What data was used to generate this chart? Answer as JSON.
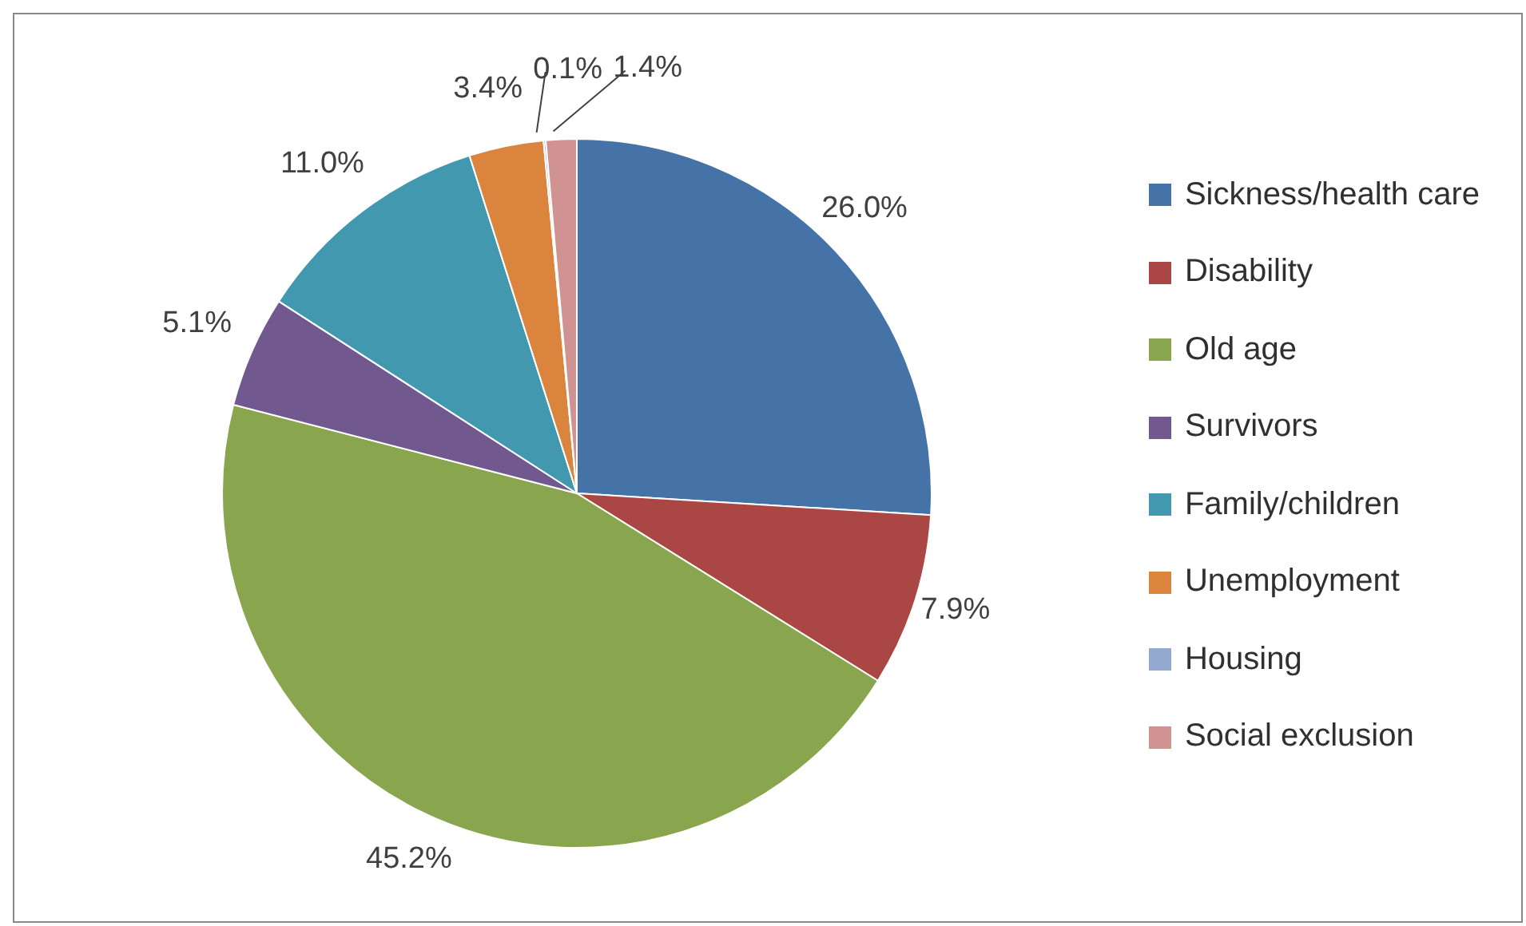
{
  "chart_data": {
    "type": "pie",
    "categories": [
      "Sickness/health care",
      "Disability",
      "Old age",
      "Survivors",
      "Family/children",
      "Unemployment",
      "Housing",
      "Social exclusion"
    ],
    "values": [
      26.0,
      7.9,
      45.2,
      5.1,
      11.0,
      3.4,
      0.1,
      1.4
    ],
    "value_labels": [
      "26.0%",
      "7.9%",
      "45.2%",
      "5.1%",
      "11.0%",
      "3.4%",
      "0.1%",
      "1.4%"
    ],
    "colors": [
      "#4572a7",
      "#aa4643",
      "#89a54e",
      "#71588f",
      "#4198af",
      "#db843d",
      "#93a9cf",
      "#d19392"
    ],
    "legend": "right"
  }
}
